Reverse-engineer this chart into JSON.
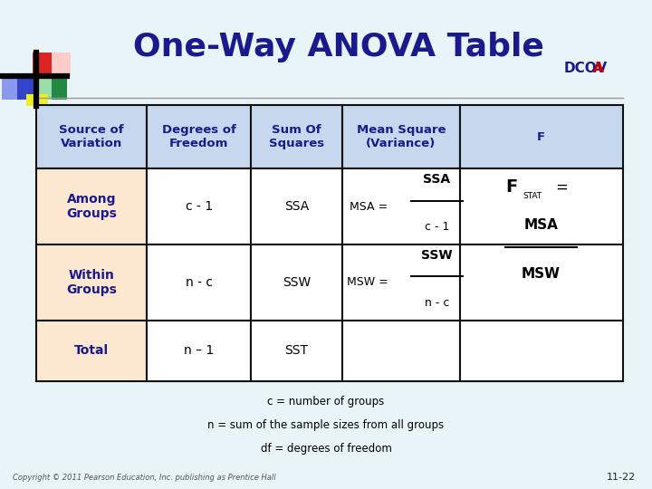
{
  "title": "One-Way ANOVA Table",
  "title_color": "#1a1a8c",
  "title_fontsize": 26,
  "dcova_text": "DCOV",
  "dcova_a": "A",
  "dcova_color": "#1a1a8c",
  "dcova_a_color": "#cc0000",
  "bg_color": "#e8f4f8",
  "header_bg": "#c5d8ee",
  "row_odd_bg": "#fce8d0",
  "row_even_bg": "#ffffff",
  "header_text_color": "#1a1a8c",
  "row_label_color": "#1a1a8c",
  "table_edge_color": "#111111",
  "copyright_text": "Copyright © 2011 Pearson Education, Inc. publishing as Prentice Hall",
  "page_number": "11-22",
  "footnote1": "c = number of groups",
  "footnote2": "n = sum of the sample sizes from all groups",
  "footnote3": "df = degrees of freedom",
  "col_bounds": [
    0.055,
    0.225,
    0.385,
    0.525,
    0.705,
    0.955
  ],
  "row_bounds": [
    0.785,
    0.655,
    0.5,
    0.345,
    0.22
  ]
}
